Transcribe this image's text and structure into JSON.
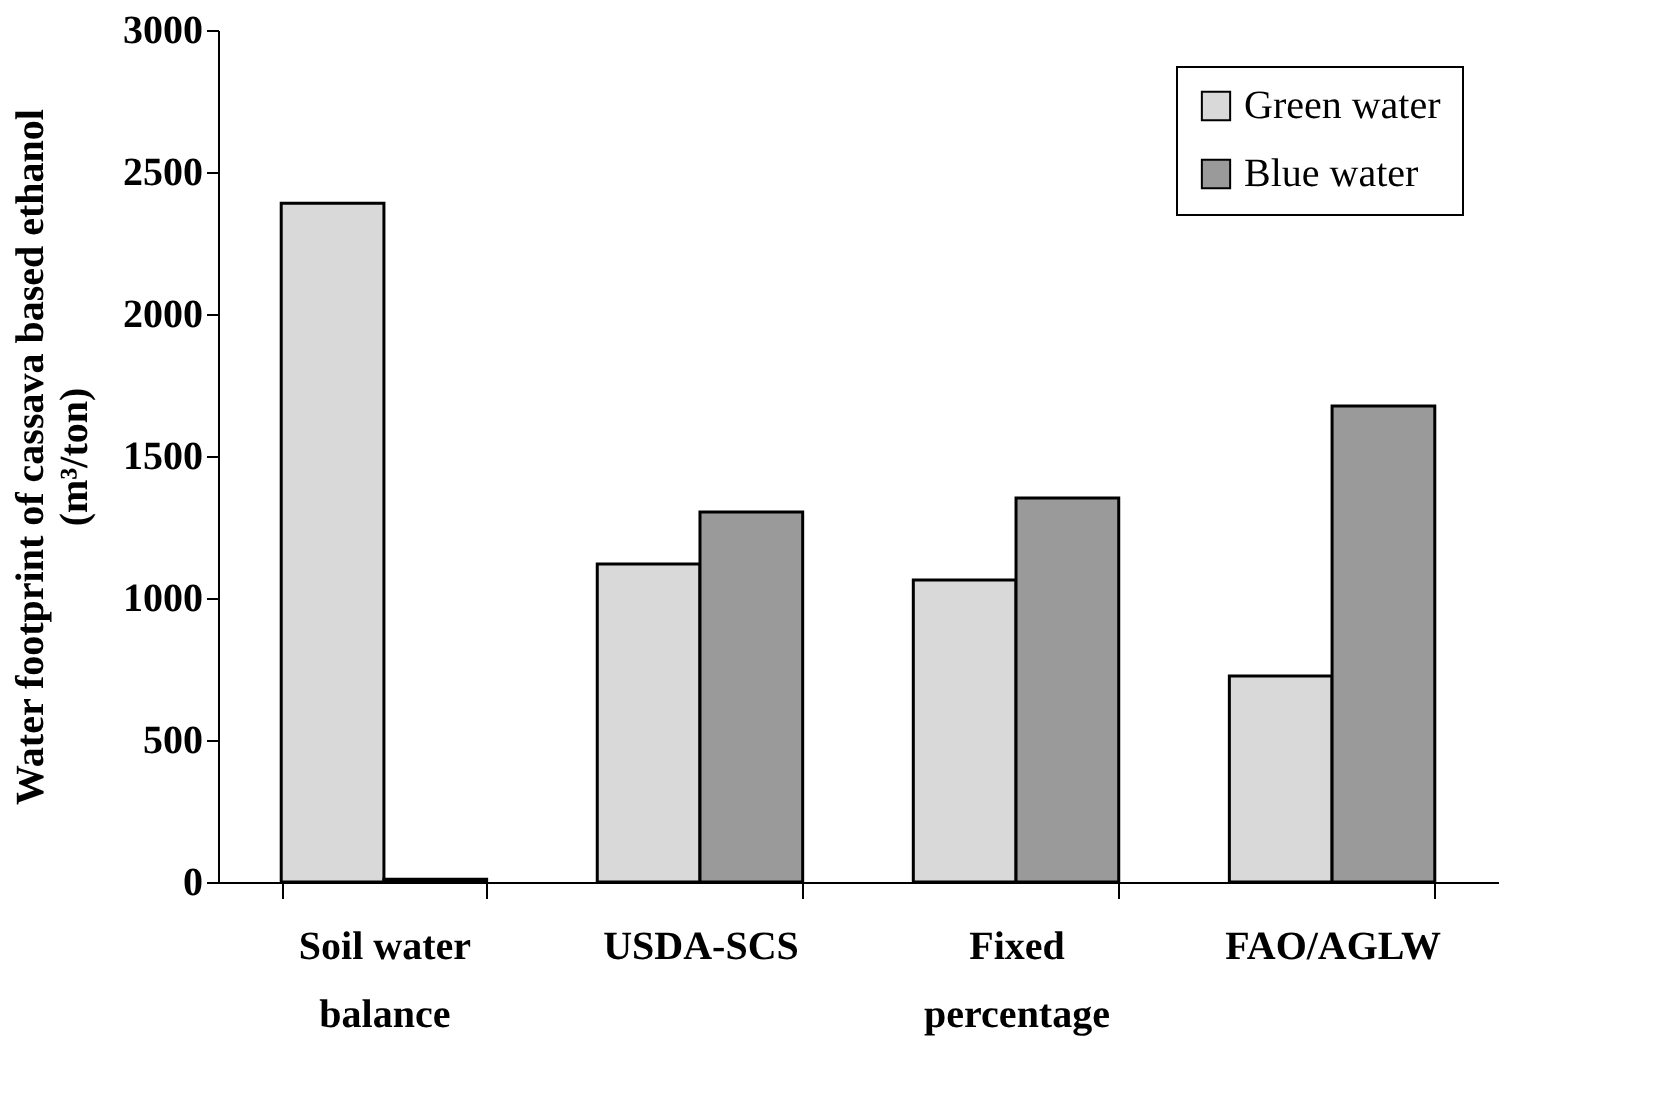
{
  "chart_data": {
    "type": "bar",
    "ylabel": "Water footprint of cassava based ethanol\n(m³/ton)",
    "categories": [
      "Soil water\nbalance",
      "USDA-SCS",
      "Fixed\npercentage",
      "FAO/AGLW"
    ],
    "series": [
      {
        "name": "Green water",
        "color": "#d9d9d9",
        "values": [
          2390,
          1120,
          1063,
          725
        ]
      },
      {
        "name": "Blue water",
        "color": "#9a9a9a",
        "values": [
          10,
          1303,
          1352,
          1676
        ]
      }
    ],
    "ylim": [
      0,
      3000
    ],
    "yticks": [
      0,
      500,
      1000,
      1500,
      2000,
      2500,
      3000
    ],
    "grid": false,
    "legend": "top right"
  }
}
